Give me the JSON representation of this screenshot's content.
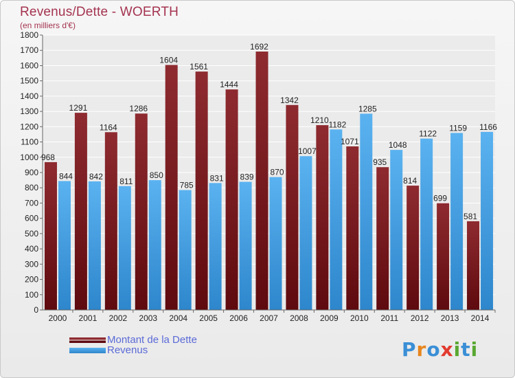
{
  "header": {
    "title": "Revenus/Dette - WOERTH",
    "subtitle": "(en milliers d'€)"
  },
  "legend": {
    "items": [
      {
        "label": "Montant de la Dette",
        "color": "#7a1a1e"
      },
      {
        "label": "Revenus",
        "color": "#4aa3e6"
      }
    ]
  },
  "logo": {
    "text": "Proxiti",
    "letter_colors": [
      "#3a8fd6",
      "#e8861e",
      "#3a8fd6",
      "#e23b30",
      "#5aa832",
      "#3a8fd6",
      "#5aa832"
    ]
  },
  "chart_data": {
    "type": "bar",
    "title": "Revenus/Dette - WOERTH",
    "subtitle": "(en milliers d'€)",
    "categories": [
      "2000",
      "2001",
      "2002",
      "2003",
      "2004",
      "2005",
      "2006",
      "2007",
      "2008",
      "2009",
      "2010",
      "2011",
      "2012",
      "2013",
      "2014"
    ],
    "series": [
      {
        "name": "Montant de la Dette",
        "color": "#7a1a1e",
        "values": [
          968,
          1291,
          1164,
          1286,
          1604,
          1561,
          1444,
          1692,
          1342,
          1210,
          1071,
          935,
          814,
          699,
          581
        ],
        "labels": [
          "968",
          "1291",
          "1164",
          "1286",
          "1604",
          "1561",
          "1444",
          "1692",
          "1342",
          "1210",
          "1071",
          "935",
          "814",
          "699",
          "581"
        ]
      },
      {
        "name": "Revenus",
        "color": "#4aa3e6",
        "values": [
          844,
          842,
          811,
          850,
          785,
          831,
          839,
          870,
          1007,
          1182,
          1285,
          1048,
          1122,
          1159,
          1166
        ],
        "labels": [
          "844",
          "842",
          "811",
          "850",
          "785",
          "831",
          "839",
          "870",
          "1007",
          "1182",
          "1285",
          "1048",
          "1122",
          "1159",
          "1166"
        ]
      }
    ],
    "ylim": [
      0,
      1800
    ],
    "yticks": [
      0,
      100,
      200,
      300,
      400,
      500,
      600,
      700,
      800,
      900,
      1000,
      1100,
      1200,
      1300,
      1400,
      1500,
      1600,
      1700,
      1800
    ],
    "grid": true,
    "legend_position": "bottom-left"
  }
}
